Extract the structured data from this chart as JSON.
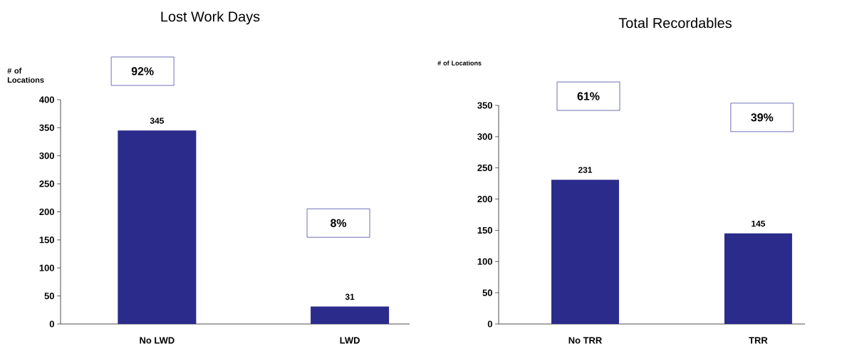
{
  "chart_data": [
    {
      "type": "bar",
      "title": "Lost Work Days",
      "ylabel": "# of Locations",
      "categories": [
        "No LWD",
        "LWD"
      ],
      "values": [
        345,
        31
      ],
      "color": "#2b2b8c",
      "ylim": [
        0,
        400
      ],
      "yticks": [
        0,
        50,
        100,
        150,
        200,
        250,
        300,
        350,
        400
      ],
      "data_labels": true,
      "annotations": [
        "92%",
        "8%"
      ]
    },
    {
      "type": "bar",
      "title": "Total Recordables",
      "ylabel": "# of Locations",
      "categories": [
        "No TRR",
        "TRR"
      ],
      "values": [
        231,
        145
      ],
      "color": "#2b2b8c",
      "ylim": [
        0,
        350
      ],
      "yticks": [
        0,
        50,
        100,
        150,
        200,
        250,
        300,
        350
      ],
      "data_labels": true,
      "annotations": [
        "61%",
        "39%"
      ]
    }
  ]
}
